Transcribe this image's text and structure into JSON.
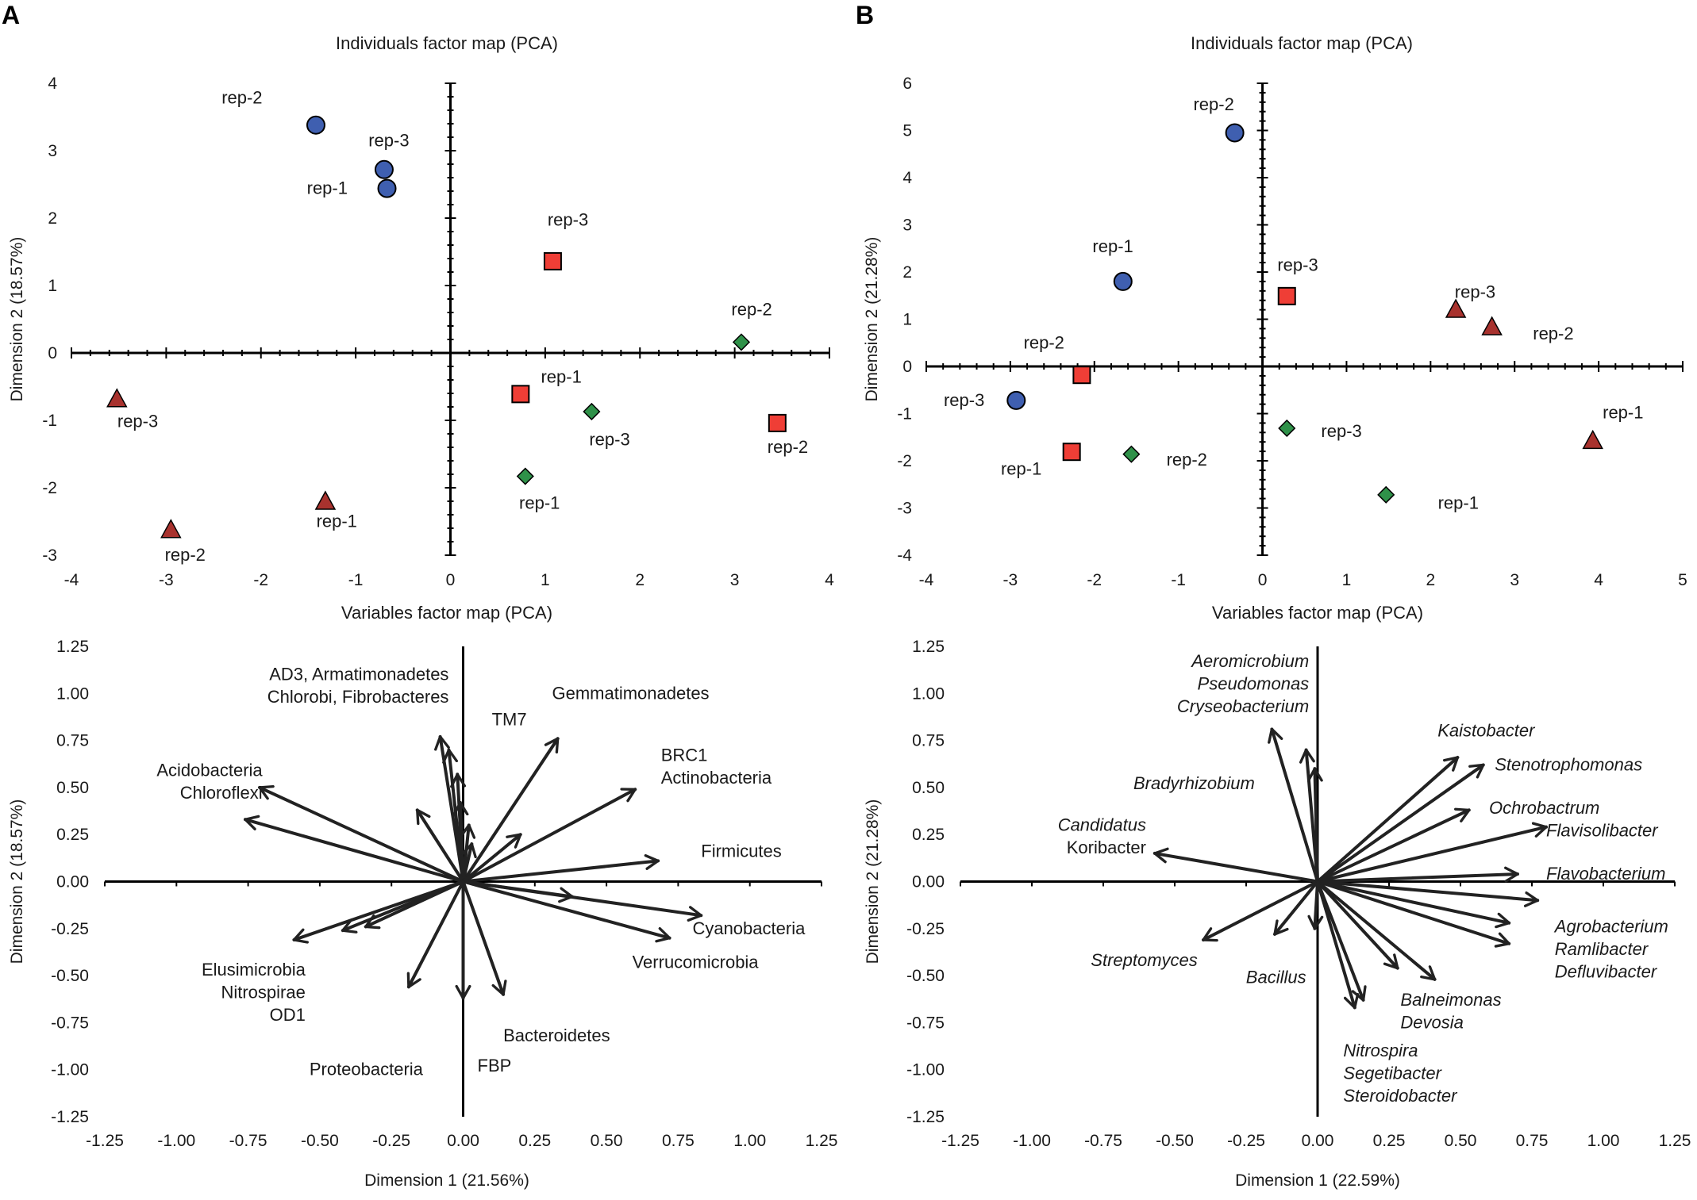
{
  "figure": {
    "panel_labels": [
      "A",
      "B"
    ]
  },
  "colors": {
    "circle": "#3f5fb0",
    "square": "#ef3e36",
    "diamond": "#2f9149",
    "triangle": "#a8322e"
  },
  "chart_data": [
    {
      "type": "scatter",
      "panel": "A",
      "title": "Individuals factor map (PCA)",
      "xlabel": "",
      "ylabel": "Dimension 2 (18.57%)",
      "xlim": [
        -4,
        4
      ],
      "ylim": [
        -3,
        4
      ],
      "xticks": [
        "-4",
        "-3",
        "-2",
        "-1",
        "0",
        "1",
        "2",
        "3",
        "4"
      ],
      "yticks": [
        "-3",
        "-2",
        "-1",
        "0",
        "1",
        "2",
        "3",
        "4"
      ],
      "points": [
        {
          "group": "circle",
          "label": "rep-2",
          "x": -1.42,
          "y": 3.38,
          "lx": -2.2,
          "ly": 3.78
        },
        {
          "group": "circle",
          "label": "rep-3",
          "x": -0.7,
          "y": 2.72,
          "lx": -0.65,
          "ly": 3.15
        },
        {
          "group": "circle",
          "label": "rep-1",
          "x": -0.67,
          "y": 2.44,
          "lx": -1.3,
          "ly": 2.44
        },
        {
          "group": "square",
          "label": "rep-3",
          "x": 1.08,
          "y": 1.36,
          "lx": 1.24,
          "ly": 1.97
        },
        {
          "group": "square",
          "label": "rep-1",
          "x": 0.74,
          "y": -0.61,
          "lx": 1.17,
          "ly": -0.36
        },
        {
          "group": "square",
          "label": "rep-2",
          "x": 3.45,
          "y": -1.04,
          "lx": 3.56,
          "ly": -1.4
        },
        {
          "group": "diamond",
          "label": "rep-2",
          "x": 3.07,
          "y": 0.16,
          "lx": 3.18,
          "ly": 0.64
        },
        {
          "group": "diamond",
          "label": "rep-3",
          "x": 1.49,
          "y": -0.87,
          "lx": 1.68,
          "ly": -1.29
        },
        {
          "group": "diamond",
          "label": "rep-1",
          "x": 0.79,
          "y": -1.83,
          "lx": 0.94,
          "ly": -2.23
        },
        {
          "group": "triangle",
          "label": "rep-3",
          "x": -3.52,
          "y": -0.68,
          "lx": -3.3,
          "ly": -1.02
        },
        {
          "group": "triangle",
          "label": "rep-1",
          "x": -1.32,
          "y": -2.2,
          "lx": -1.2,
          "ly": -2.5
        },
        {
          "group": "triangle",
          "label": "rep-2",
          "x": -2.95,
          "y": -2.62,
          "lx": -2.8,
          "ly": -3.0
        }
      ]
    },
    {
      "type": "scatter",
      "panel": "B",
      "title": "Individuals factor map (PCA)",
      "xlabel": "",
      "ylabel": "Dimension 2 (21.28%)",
      "xlim": [
        -4,
        5
      ],
      "ylim": [
        -4,
        6
      ],
      "xticks": [
        "-4",
        "-3",
        "-2",
        "-1",
        "0",
        "1",
        "2",
        "3",
        "4",
        "5"
      ],
      "yticks": [
        "-4",
        "-3",
        "-2",
        "-1",
        "0",
        "1",
        "2",
        "3",
        "4",
        "5",
        "6"
      ],
      "points": [
        {
          "group": "circle",
          "label": "rep-2",
          "x": -0.33,
          "y": 4.95,
          "lx": -0.58,
          "ly": 5.55
        },
        {
          "group": "circle",
          "label": "rep-1",
          "x": -1.66,
          "y": 1.8,
          "lx": -1.78,
          "ly": 2.54
        },
        {
          "group": "circle",
          "label": "rep-3",
          "x": -2.93,
          "y": -0.72,
          "lx": -3.55,
          "ly": -0.72
        },
        {
          "group": "square",
          "label": "rep-3",
          "x": 0.29,
          "y": 1.49,
          "lx": 0.42,
          "ly": 2.14
        },
        {
          "group": "square",
          "label": "rep-2",
          "x": -2.15,
          "y": -0.18,
          "lx": -2.6,
          "ly": 0.5
        },
        {
          "group": "square",
          "label": "rep-1",
          "x": -2.27,
          "y": -1.81,
          "lx": -2.87,
          "ly": -2.18
        },
        {
          "group": "triangle",
          "label": "rep-3",
          "x": 2.3,
          "y": 1.21,
          "lx": 2.53,
          "ly": 1.57
        },
        {
          "group": "triangle",
          "label": "rep-2",
          "x": 2.73,
          "y": 0.84,
          "lx": 3.46,
          "ly": 0.69
        },
        {
          "group": "triangle",
          "label": "rep-1",
          "x": 3.93,
          "y": -1.57,
          "lx": 4.29,
          "ly": -0.98
        },
        {
          "group": "diamond",
          "label": "rep-3",
          "x": 0.29,
          "y": -1.31,
          "lx": 0.94,
          "ly": -1.38
        },
        {
          "group": "diamond",
          "label": "rep-2",
          "x": -1.56,
          "y": -1.86,
          "lx": -0.9,
          "ly": -1.98
        },
        {
          "group": "diamond",
          "label": "rep-1",
          "x": 1.47,
          "y": -2.72,
          "lx": 2.33,
          "ly": -2.9
        }
      ]
    },
    {
      "type": "biplot",
      "panel": "A",
      "title": "Variables factor map (PCA)",
      "xlabel": "Dimension 1 (21.56%)",
      "ylabel": "Dimension 2 (18.57%)",
      "xlim": [
        -1.25,
        1.25
      ],
      "ylim": [
        -1.25,
        1.25
      ],
      "xticks": [
        "-1.25",
        "-1.00",
        "-0.75",
        "-0.50",
        "-0.25",
        "0.00",
        "0.25",
        "0.50",
        "0.75",
        "1.00",
        "1.25"
      ],
      "yticks": [
        "1.25",
        "1.00",
        "0.75",
        "0.50",
        "0.25",
        "0.00",
        "-0.25",
        "-0.50",
        "-0.75",
        "-1.00",
        "-1.25"
      ],
      "vectors": [
        {
          "x": -0.71,
          "y": 0.5
        },
        {
          "x": -0.76,
          "y": 0.33
        },
        {
          "x": -0.08,
          "y": 0.77
        },
        {
          "x": -0.05,
          "y": 0.7
        },
        {
          "x": -0.02,
          "y": 0.57
        },
        {
          "x": -0.01,
          "y": 0.42
        },
        {
          "x": -0.16,
          "y": 0.38
        },
        {
          "x": 0.02,
          "y": 0.3
        },
        {
          "x": 0.03,
          "y": 0.2
        },
        {
          "x": 0.33,
          "y": 0.76
        },
        {
          "x": 0.6,
          "y": 0.49
        },
        {
          "x": 0.68,
          "y": 0.11
        },
        {
          "x": 0.2,
          "y": 0.25
        },
        {
          "x": 0.83,
          "y": -0.18
        },
        {
          "x": 0.72,
          "y": -0.3
        },
        {
          "x": 0.38,
          "y": -0.08
        },
        {
          "x": -0.59,
          "y": -0.31
        },
        {
          "x": -0.42,
          "y": -0.26
        },
        {
          "x": -0.34,
          "y": -0.24
        },
        {
          "x": -0.19,
          "y": -0.56
        },
        {
          "x": 0.0,
          "y": -0.62
        },
        {
          "x": 0.14,
          "y": -0.6
        }
      ],
      "labels": [
        {
          "text": "AD3, Armatimonadetes",
          "x": -0.05,
          "y": 1.1,
          "anchor": "end"
        },
        {
          "text": "Chlorobi, Fibrobacteres",
          "x": -0.05,
          "y": 0.98,
          "anchor": "end"
        },
        {
          "text": "TM7",
          "x": 0.1,
          "y": 0.86,
          "anchor": "start"
        },
        {
          "text": "Gemmatimonadetes",
          "x": 0.31,
          "y": 1.0,
          "anchor": "start"
        },
        {
          "text": "Acidobacteria",
          "x": -0.7,
          "y": 0.59,
          "anchor": "end"
        },
        {
          "text": "Chloroflexi",
          "x": -0.7,
          "y": 0.47,
          "anchor": "end"
        },
        {
          "text": "BRC1",
          "x": 0.69,
          "y": 0.67,
          "anchor": "start"
        },
        {
          "text": "Actinobacteria",
          "x": 0.69,
          "y": 0.55,
          "anchor": "start"
        },
        {
          "text": "Firmicutes",
          "x": 0.83,
          "y": 0.16,
          "anchor": "start"
        },
        {
          "text": "Cyanobacteria",
          "x": 0.8,
          "y": -0.25,
          "anchor": "start"
        },
        {
          "text": "Verrucomicrobia",
          "x": 0.59,
          "y": -0.43,
          "anchor": "start"
        },
        {
          "text": "Elusimicrobia",
          "x": -0.55,
          "y": -0.47,
          "anchor": "end"
        },
        {
          "text": "Nitrospirae",
          "x": -0.55,
          "y": -0.59,
          "anchor": "end"
        },
        {
          "text": "OD1",
          "x": -0.55,
          "y": -0.71,
          "anchor": "end"
        },
        {
          "text": "Bacteroidetes",
          "x": 0.14,
          "y": -0.82,
          "anchor": "start"
        },
        {
          "text": "Proteobacteria",
          "x": -0.14,
          "y": -1.0,
          "anchor": "end"
        },
        {
          "text": "FBP",
          "x": 0.05,
          "y": -0.98,
          "anchor": "start"
        }
      ]
    },
    {
      "type": "biplot",
      "panel": "B",
      "title": "Variables factor map (PCA)",
      "xlabel": "Dimension 1 (22.59%)",
      "ylabel": "Dimension 2 (21.28%)",
      "xlim": [
        -1.25,
        1.25
      ],
      "ylim": [
        -1.25,
        1.25
      ],
      "xticks": [
        "-1.25",
        "-1.00",
        "-0.75",
        "-0.50",
        "-0.25",
        "0.00",
        "0.25",
        "0.50",
        "0.75",
        "1.00",
        "1.25"
      ],
      "yticks": [
        "1.25",
        "1.00",
        "0.75",
        "0.50",
        "0.25",
        "0.00",
        "-0.25",
        "-0.50",
        "-0.75",
        "-1.00",
        "-1.25"
      ],
      "vectors": [
        {
          "x": -0.16,
          "y": 0.81
        },
        {
          "x": -0.04,
          "y": 0.7
        },
        {
          "x": -0.01,
          "y": 0.6
        },
        {
          "x": -0.57,
          "y": 0.15
        },
        {
          "x": 0.49,
          "y": 0.66
        },
        {
          "x": 0.58,
          "y": 0.62
        },
        {
          "x": 0.53,
          "y": 0.38
        },
        {
          "x": 0.8,
          "y": 0.29
        },
        {
          "x": 0.7,
          "y": 0.04
        },
        {
          "x": 0.77,
          "y": -0.1
        },
        {
          "x": 0.67,
          "y": -0.22
        },
        {
          "x": 0.67,
          "y": -0.33
        },
        {
          "x": -0.4,
          "y": -0.31
        },
        {
          "x": -0.15,
          "y": -0.28
        },
        {
          "x": -0.01,
          "y": -0.25
        },
        {
          "x": 0.41,
          "y": -0.52
        },
        {
          "x": 0.28,
          "y": -0.46
        },
        {
          "x": 0.16,
          "y": -0.63
        },
        {
          "x": 0.13,
          "y": -0.67
        }
      ],
      "labels": [
        {
          "text": "Aeromicrobium",
          "x": -0.03,
          "y": 1.17,
          "anchor": "end",
          "italic": true
        },
        {
          "text": "Pseudomonas",
          "x": -0.03,
          "y": 1.05,
          "anchor": "end",
          "italic": true
        },
        {
          "text": "Cryseobacterium",
          "x": -0.03,
          "y": 0.93,
          "anchor": "end",
          "italic": true
        },
        {
          "text": "Bradyrhizobium",
          "x": -0.22,
          "y": 0.52,
          "anchor": "end",
          "italic": true
        },
        {
          "text": "Candidatus",
          "x": -0.6,
          "y": 0.3,
          "anchor": "end",
          "italic": true
        },
        {
          "text": "Koribacter",
          "x": -0.6,
          "y": 0.18,
          "anchor": "end",
          "italic": false
        },
        {
          "text": "Kaistobacter",
          "x": 0.42,
          "y": 0.8,
          "anchor": "start",
          "italic": true
        },
        {
          "text": "Stenotrophomonas",
          "x": 0.62,
          "y": 0.62,
          "anchor": "start",
          "italic": true
        },
        {
          "text": "Ochrobactrum",
          "x": 0.6,
          "y": 0.39,
          "anchor": "start",
          "italic": true
        },
        {
          "text": "Flavisolibacter",
          "x": 0.8,
          "y": 0.27,
          "anchor": "start",
          "italic": true
        },
        {
          "text": "Flavobacterium",
          "x": 0.8,
          "y": 0.04,
          "anchor": "start",
          "italic": true
        },
        {
          "text": "Agrobacterium",
          "x": 0.83,
          "y": -0.24,
          "anchor": "start",
          "italic": true
        },
        {
          "text": "Ramlibacter",
          "x": 0.83,
          "y": -0.36,
          "anchor": "start",
          "italic": true
        },
        {
          "text": "Defluvibacter",
          "x": 0.83,
          "y": -0.48,
          "anchor": "start",
          "italic": true
        },
        {
          "text": "Streptomyces",
          "x": -0.42,
          "y": -0.42,
          "anchor": "end",
          "italic": true
        },
        {
          "text": "Bacillus",
          "x": -0.04,
          "y": -0.51,
          "anchor": "end",
          "italic": true
        },
        {
          "text": "Balneimonas",
          "x": 0.29,
          "y": -0.63,
          "anchor": "start",
          "italic": true
        },
        {
          "text": "Devosia",
          "x": 0.29,
          "y": -0.75,
          "anchor": "start",
          "italic": true
        },
        {
          "text": "Nitrospira",
          "x": 0.09,
          "y": -0.9,
          "anchor": "start",
          "italic": true
        },
        {
          "text": "Segetibacter",
          "x": 0.09,
          "y": -1.02,
          "anchor": "start",
          "italic": true
        },
        {
          "text": "Steroidobacter",
          "x": 0.09,
          "y": -1.14,
          "anchor": "start",
          "italic": true
        }
      ]
    }
  ]
}
